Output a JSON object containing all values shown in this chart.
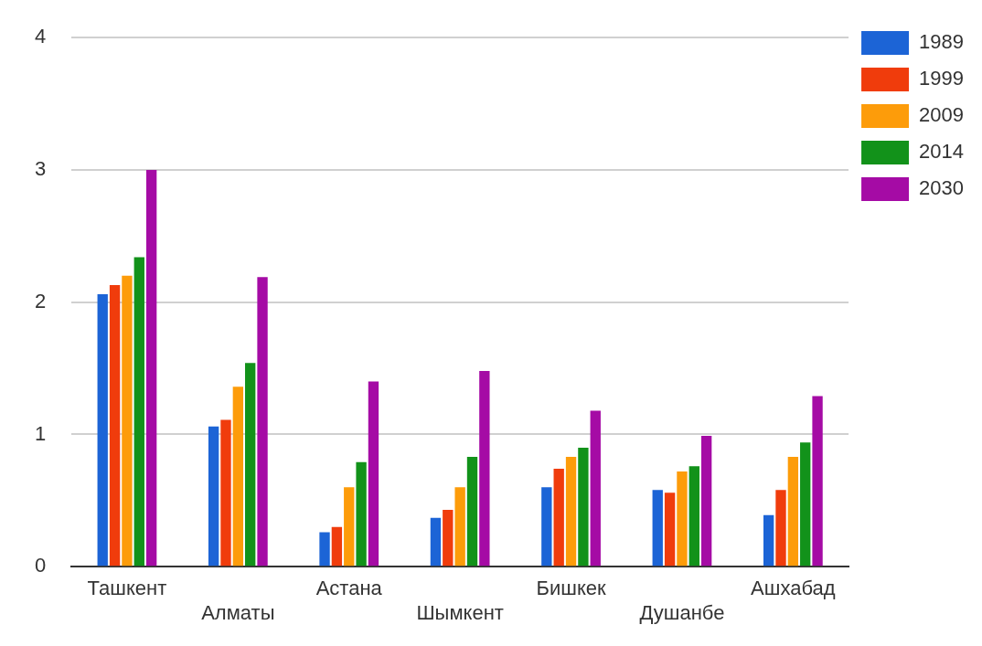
{
  "chart_data": {
    "type": "bar",
    "categories": [
      "Ташкент",
      "Алматы",
      "Астана",
      "Шымкент",
      "Бишкек",
      "Душанбе",
      "Ашхабад"
    ],
    "series": [
      {
        "name": "1989",
        "color": "#1c64d6",
        "values": [
          2.06,
          1.06,
          0.26,
          0.37,
          0.6,
          0.58,
          0.39
        ]
      },
      {
        "name": "1999",
        "color": "#f03c0c",
        "values": [
          2.13,
          1.11,
          0.3,
          0.43,
          0.74,
          0.56,
          0.58
        ]
      },
      {
        "name": "2009",
        "color": "#fd9c0a",
        "values": [
          2.2,
          1.36,
          0.6,
          0.6,
          0.83,
          0.72,
          0.83
        ]
      },
      {
        "name": "2014",
        "color": "#12921a",
        "values": [
          2.34,
          1.54,
          0.79,
          0.83,
          0.9,
          0.76,
          0.94
        ]
      },
      {
        "name": "2030",
        "color": "#a50ba5",
        "values": [
          3.0,
          2.19,
          1.4,
          1.48,
          1.18,
          0.99,
          1.29
        ]
      }
    ],
    "ylim": [
      0,
      4
    ],
    "yticks": [
      0,
      1,
      2,
      3,
      4
    ],
    "grid": "y",
    "legend": "top right"
  }
}
